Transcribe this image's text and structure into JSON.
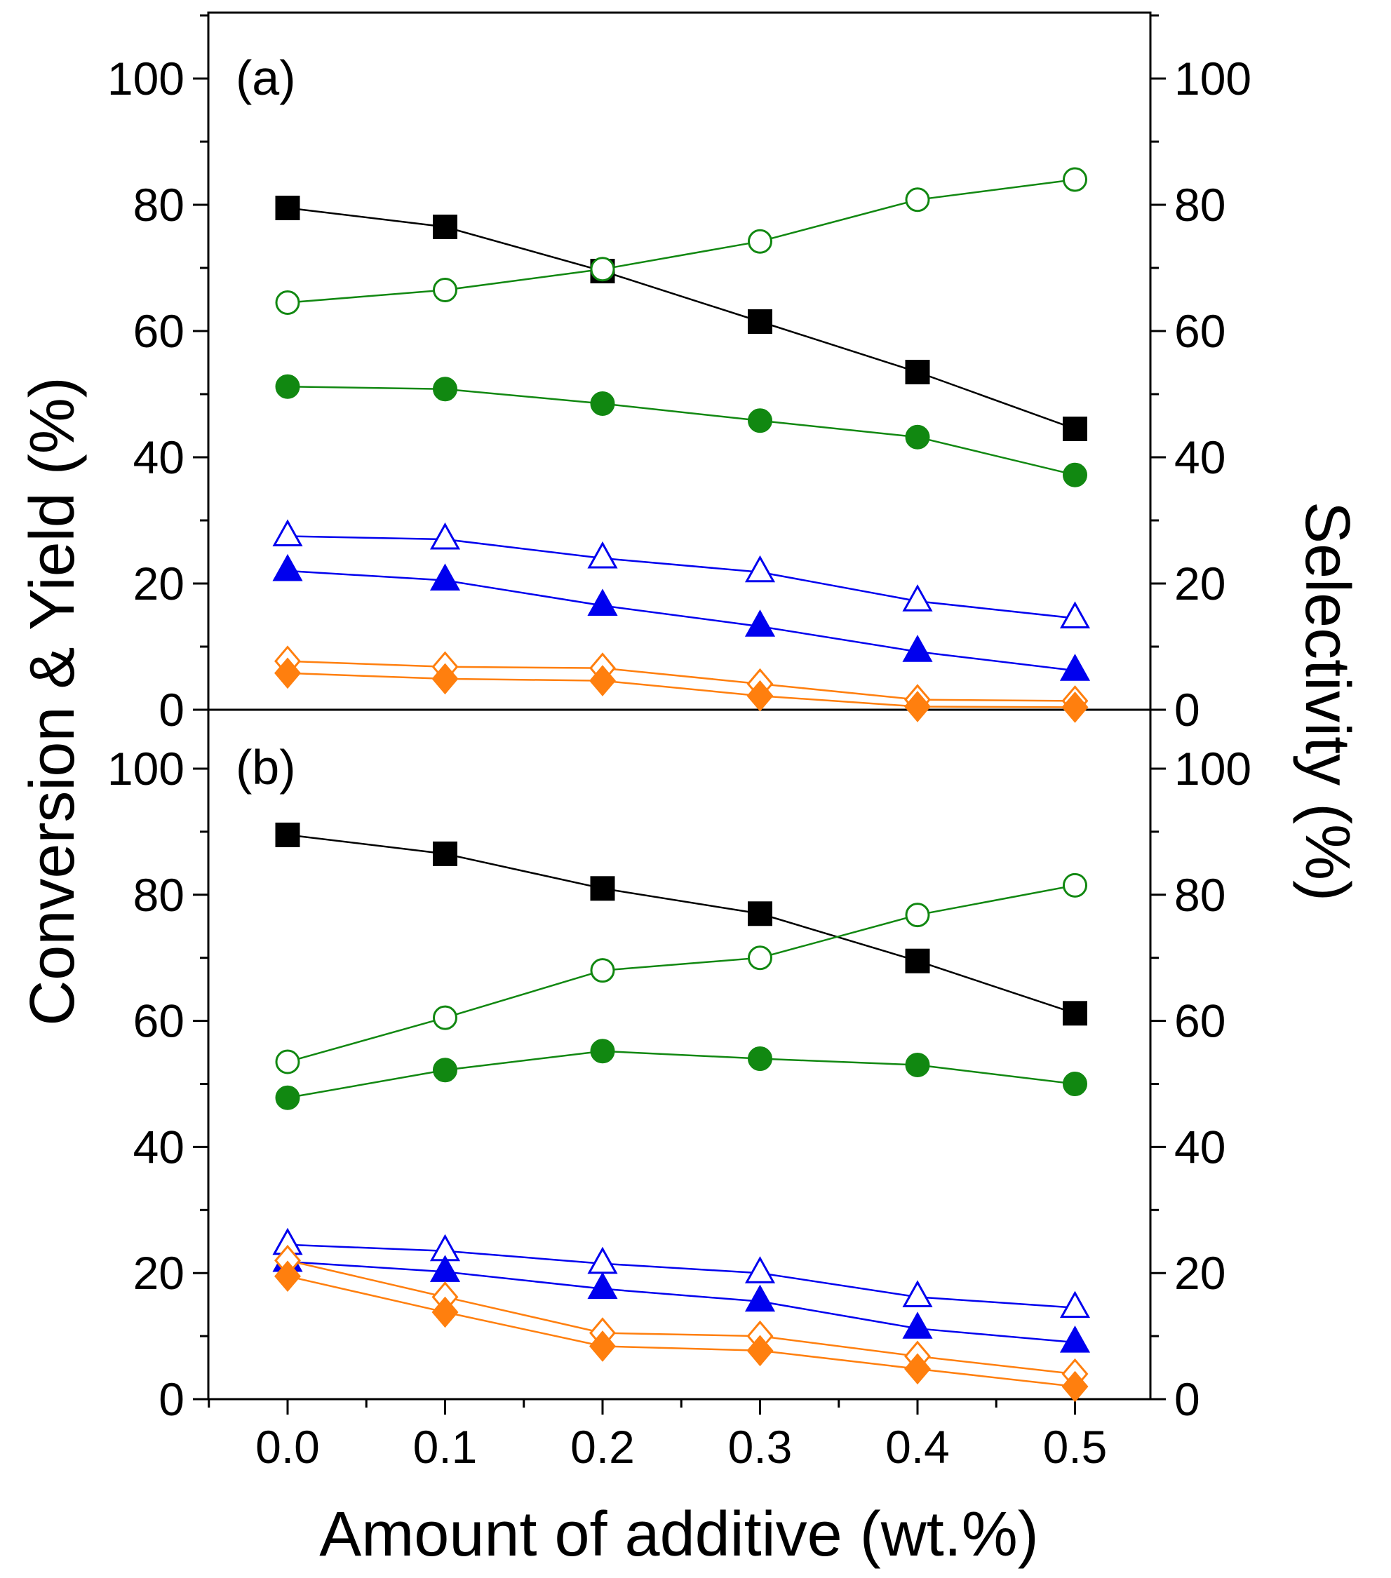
{
  "chart_data": [
    {
      "panel": "(a)",
      "type": "line",
      "x": [
        0.0,
        0.1,
        0.2,
        0.3,
        0.4,
        0.5
      ],
      "ylim": [
        0,
        110
      ],
      "y_ticks": [
        0,
        20,
        40,
        60,
        80,
        100
      ],
      "y_tick_labels": [
        "0",
        "20",
        "40",
        "60",
        "80",
        "100"
      ],
      "y2_tick_labels": [
        "0",
        "20",
        "40",
        "60",
        "80",
        "100"
      ],
      "series": [
        {
          "name": "black-square",
          "marker": "square",
          "filled": true,
          "color": "#000000",
          "values": [
            79.5,
            76.5,
            69.5,
            61.5,
            53.5,
            44.5
          ]
        },
        {
          "name": "green-open-circle",
          "marker": "circle",
          "filled": false,
          "color": "#118811",
          "values": [
            64.5,
            66.5,
            69.8,
            74.2,
            80.8,
            84.0
          ]
        },
        {
          "name": "green-filled-circle",
          "marker": "circle",
          "filled": true,
          "color": "#118811",
          "values": [
            51.2,
            50.8,
            48.5,
            45.8,
            43.2,
            37.2
          ]
        },
        {
          "name": "blue-open-triangle",
          "marker": "triangle",
          "filled": false,
          "color": "#0000ee",
          "values": [
            27.5,
            27.0,
            24.0,
            21.8,
            17.2,
            14.5
          ]
        },
        {
          "name": "blue-filled-triangle",
          "marker": "triangle",
          "filled": true,
          "color": "#0000ee",
          "values": [
            22.0,
            20.5,
            16.5,
            13.2,
            9.2,
            6.2
          ]
        },
        {
          "name": "orange-open-diamond",
          "marker": "diamond",
          "filled": false,
          "color": "#ff7f0e",
          "values": [
            7.7,
            6.8,
            6.6,
            4.1,
            1.6,
            1.4
          ]
        },
        {
          "name": "orange-filled-diamond",
          "marker": "diamond",
          "filled": true,
          "color": "#ff7f0e",
          "values": [
            5.8,
            4.9,
            4.6,
            2.2,
            0.5,
            0.4
          ]
        }
      ]
    },
    {
      "panel": "(b)",
      "type": "line",
      "x": [
        0.0,
        0.1,
        0.2,
        0.3,
        0.4,
        0.5
      ],
      "ylim": [
        0,
        110
      ],
      "y_ticks": [
        0,
        20,
        40,
        60,
        80,
        100
      ],
      "y_tick_labels": [
        "0",
        "20",
        "40",
        "60",
        "80",
        "100"
      ],
      "y2_tick_labels": [
        "0",
        "20",
        "40",
        "60",
        "80",
        "100"
      ],
      "x_tick_labels": [
        "0.0",
        "0.1",
        "0.2",
        "0.3",
        "0.4",
        "0.5"
      ],
      "series": [
        {
          "name": "black-square",
          "marker": "square",
          "filled": true,
          "color": "#000000",
          "values": [
            89.5,
            86.5,
            81.0,
            77.0,
            69.5,
            61.2
          ]
        },
        {
          "name": "green-open-circle",
          "marker": "circle",
          "filled": false,
          "color": "#118811",
          "values": [
            53.5,
            60.5,
            68.0,
            70.0,
            76.8,
            81.5
          ]
        },
        {
          "name": "green-filled-circle",
          "marker": "circle",
          "filled": true,
          "color": "#118811",
          "values": [
            47.8,
            52.2,
            55.2,
            54.0,
            53.0,
            50.0
          ]
        },
        {
          "name": "blue-open-triangle",
          "marker": "triangle",
          "filled": false,
          "color": "#0000ee",
          "values": [
            24.5,
            23.5,
            21.5,
            20.0,
            16.2,
            14.5
          ]
        },
        {
          "name": "blue-filled-triangle",
          "marker": "triangle",
          "filled": true,
          "color": "#0000ee",
          "values": [
            21.8,
            20.2,
            17.5,
            15.5,
            11.2,
            9.0
          ]
        },
        {
          "name": "orange-open-diamond",
          "marker": "diamond",
          "filled": false,
          "color": "#ff7f0e",
          "values": [
            22.0,
            16.2,
            10.5,
            10.0,
            6.8,
            4.0
          ]
        },
        {
          "name": "orange-filled-diamond",
          "marker": "diamond",
          "filled": true,
          "color": "#ff7f0e",
          "values": [
            19.5,
            13.8,
            8.4,
            7.7,
            4.8,
            2.0
          ]
        }
      ]
    }
  ],
  "labels": {
    "xlabel": "Amount of additive (wt.%)",
    "ylabel": "Conversion & Yield (%)",
    "y2label": "Selectivity (%)"
  }
}
